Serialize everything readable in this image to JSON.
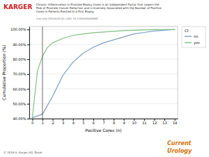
{
  "chart_data": {
    "type": "line",
    "title": "Chronic Inflammation in Prostate Biopsy Cores is an Independent Factor that Lowers the\nRisk of Prostate Cancer Detection and is Inversely Associated with the Number of Positive\nCores in Patients Elected to a First Biopsy",
    "subtitle": "Curr Urol 2016;9:83-92  |  DOI: 10.1159/000430898",
    "x_label": "Positive Cores (n)",
    "y_label": "Cumulative Proportion (%)",
    "legend_title": "CI",
    "legend": "right",
    "grid": true,
    "xlim": [
      -0.3,
      14.3
    ],
    "xticks": [
      0,
      1,
      2,
      3,
      4,
      5,
      6,
      7,
      8,
      9,
      10,
      11,
      12,
      13,
      14
    ],
    "ylim": [
      40,
      102
    ],
    "yticks": [
      {
        "value": 40,
        "label": "40.00%"
      },
      {
        "value": 50,
        "label": "50.00%"
      },
      {
        "value": 60,
        "label": "60.00%"
      },
      {
        "value": 70,
        "label": "70.00%"
      },
      {
        "value": 80,
        "label": "80.00%"
      },
      {
        "value": 90,
        "label": "90.00%"
      },
      {
        "value": 100,
        "label": "100.00%"
      }
    ],
    "series": [
      {
        "name": "no",
        "color": "#7b9ec4",
        "x": [
          0,
          1,
          2,
          3,
          4,
          5,
          6,
          7,
          8,
          9,
          10,
          11,
          12,
          13,
          14
        ],
        "values": [
          40.5,
          43,
          55,
          69,
          78,
          84,
          88,
          91,
          93,
          95,
          97,
          98,
          99,
          99.5,
          100
        ]
      },
      {
        "name": "yes",
        "color": "#80c080",
        "x": [
          0,
          0.5,
          1,
          1.5,
          2,
          3,
          4,
          5,
          6,
          7,
          8,
          9,
          10,
          11,
          12,
          13,
          14
        ],
        "values": [
          40.5,
          72,
          82,
          88,
          91,
          94,
          96,
          97,
          97.8,
          98.3,
          98.8,
          99.2,
          99.5,
          99.7,
          99.9,
          100,
          100
        ]
      }
    ],
    "reference_lines": [
      {
        "x": 1,
        "color": "#444444"
      }
    ],
    "annotations": [
      {
        "text": "KARGER",
        "color": "#cc2222"
      },
      {
        "text": "© 2016 S. Karger AG, Basel"
      },
      {
        "text": "Current",
        "color": "#d4720a"
      },
      {
        "text": "Urology",
        "color": "#d4720a"
      }
    ]
  }
}
